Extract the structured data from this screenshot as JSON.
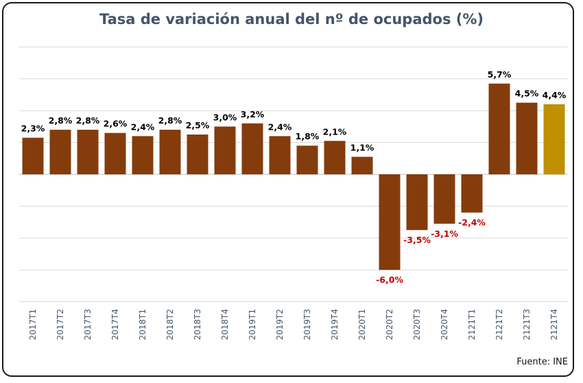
{
  "chart_data": {
    "type": "bar",
    "title": "Tasa de variación anual del nº de ocupados (%)",
    "source": "Fuente: INE",
    "categories": [
      "2017T1",
      "2017T2",
      "2017T3",
      "2017T4",
      "2018T1",
      "2018T2",
      "2018T3",
      "2018T4",
      "2019T1",
      "2019T2",
      "2019T3",
      "2019T4",
      "2020T1",
      "2020T2",
      "2020T3",
      "2020T4",
      "2121T1",
      "2121T2",
      "2121T3",
      "2121T4"
    ],
    "values": [
      2.3,
      2.8,
      2.8,
      2.6,
      2.4,
      2.8,
      2.5,
      3.0,
      3.2,
      2.4,
      1.8,
      2.1,
      1.1,
      -6.0,
      -3.5,
      -3.1,
      -2.4,
      5.7,
      4.5,
      4.4
    ],
    "data_labels": [
      "2,3%",
      "2,8%",
      "2,8%",
      "2,6%",
      "2,4%",
      "2,8%",
      "2,5%",
      "3,0%",
      "3,2%",
      "2,4%",
      "1,8%",
      "2,1%",
      "1,1%",
      "-6,0%",
      "-3,5%",
      "-3,1%",
      "-2,4%",
      "5,7%",
      "4,5%",
      "4,4%"
    ],
    "ylim": [
      -8,
      8
    ],
    "grid": true,
    "colors": {
      "bar": "#843c0c",
      "highlight": "#bf9000",
      "negative_label": "#c00000",
      "positive_label": "#000000",
      "title": "#44546a",
      "grid": "#d9d9d9"
    }
  }
}
